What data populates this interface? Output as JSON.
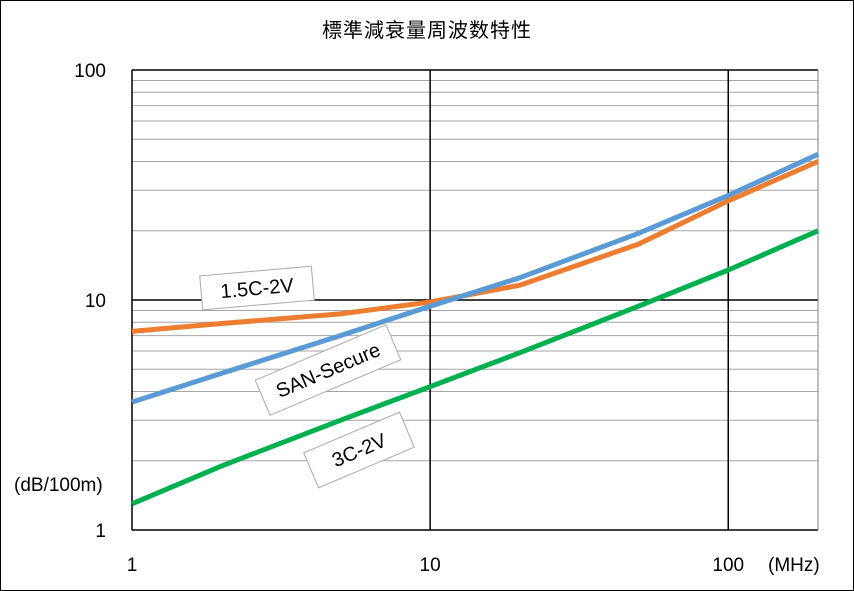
{
  "chart_data": {
    "type": "line",
    "title": "標準減衰量周波数特性",
    "xscale": "log",
    "yscale": "log",
    "xlim": [
      1,
      200
    ],
    "ylim": [
      1,
      100
    ],
    "x_ticks": [
      1,
      10,
      100
    ],
    "x_tick_labels": [
      "1",
      "10",
      "100"
    ],
    "y_ticks": [
      1,
      10,
      100
    ],
    "y_tick_labels": [
      "1",
      "10",
      "100"
    ],
    "xunit": "(MHz)",
    "yunit": "(dB/100m)",
    "grid": "on",
    "series": [
      {
        "name": "1.5C-2V",
        "color": "#ED7D31",
        "x": [
          1,
          2,
          5,
          10,
          20,
          50,
          100,
          200
        ],
        "y": [
          7.3,
          7.9,
          8.7,
          9.8,
          11.6,
          17.5,
          27,
          40
        ]
      },
      {
        "name": "SAN-Secure",
        "color": "#5B9BD5",
        "x": [
          1,
          2,
          5,
          10,
          20,
          50,
          100,
          200
        ],
        "y": [
          3.6,
          4.8,
          7.0,
          9.4,
          12.5,
          19.5,
          28.5,
          43
        ]
      },
      {
        "name": "3C-2V",
        "color": "#00B050",
        "x": [
          1,
          2,
          5,
          10,
          20,
          50,
          100,
          200
        ],
        "y": [
          1.3,
          1.9,
          3.0,
          4.2,
          5.9,
          9.4,
          13.5,
          20
        ]
      }
    ]
  }
}
